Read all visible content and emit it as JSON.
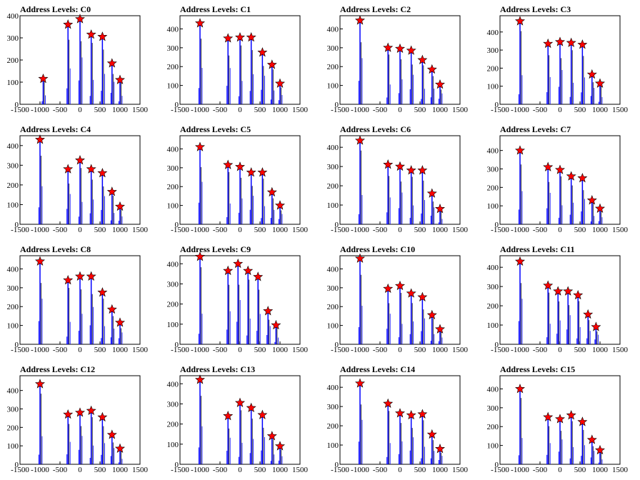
{
  "colors": {
    "bar": "#0000ff",
    "baseline": "#000000",
    "marker": "#ff0000",
    "background": "#ffffff"
  },
  "chart_data": [
    {
      "type": "bar",
      "title": "Address Levels: C0",
      "xlim": [
        -1500,
        1500
      ],
      "ylim": [
        0,
        400
      ],
      "xticks": [
        -1500,
        -1000,
        -500,
        0,
        500,
        1000,
        1500
      ],
      "yticks": [
        0,
        100,
        200,
        300,
        400
      ],
      "peaks": {
        "x": [
          -920,
          -300,
          0,
          280,
          560,
          800,
          1000
        ],
        "y": [
          115,
          360,
          385,
          315,
          305,
          185,
          110
        ]
      }
    },
    {
      "type": "bar",
      "title": "Address Levels: C1",
      "xlim": [
        -1500,
        1500
      ],
      "ylim": [
        0,
        470
      ],
      "xticks": [
        -1500,
        -1000,
        -500,
        0,
        500,
        1000,
        1500
      ],
      "yticks": [
        0,
        100,
        200,
        300,
        400
      ],
      "peaks": {
        "x": [
          -1000,
          -300,
          0,
          280,
          560,
          800,
          1000
        ],
        "y": [
          430,
          350,
          355,
          355,
          275,
          210,
          110
        ]
      }
    },
    {
      "type": "bar",
      "title": "Address Levels: C2",
      "xlim": [
        -1500,
        1500
      ],
      "ylim": [
        0,
        470
      ],
      "xticks": [
        -1500,
        -1000,
        -500,
        0,
        500,
        1000,
        1500
      ],
      "yticks": [
        0,
        100,
        200,
        300,
        400
      ],
      "peaks": {
        "x": [
          -1000,
          -300,
          0,
          280,
          560,
          800,
          1000
        ],
        "y": [
          445,
          300,
          295,
          285,
          235,
          185,
          105
        ]
      }
    },
    {
      "type": "bar",
      "title": "Address Levels: C3",
      "xlim": [
        -1500,
        1500
      ],
      "ylim": [
        0,
        490
      ],
      "xticks": [
        -1500,
        -1000,
        -500,
        0,
        500,
        1000,
        1500
      ],
      "yticks": [
        0,
        100,
        200,
        300,
        400
      ],
      "peaks": {
        "x": [
          -1000,
          -300,
          0,
          280,
          560,
          800,
          1000
        ],
        "y": [
          460,
          335,
          345,
          340,
          330,
          165,
          115
        ]
      }
    },
    {
      "type": "bar",
      "title": "Address Levels: C4",
      "xlim": [
        -1500,
        1500
      ],
      "ylim": [
        0,
        450
      ],
      "xticks": [
        -1500,
        -1000,
        -500,
        0,
        500,
        1000,
        1500
      ],
      "yticks": [
        0,
        100,
        200,
        300,
        400
      ],
      "peaks": {
        "x": [
          -1000,
          -300,
          0,
          280,
          560,
          800,
          1000
        ],
        "y": [
          430,
          280,
          325,
          280,
          260,
          165,
          90
        ]
      }
    },
    {
      "type": "bar",
      "title": "Address Levels: C5",
      "xlim": [
        -1500,
        1500
      ],
      "ylim": [
        0,
        470
      ],
      "xticks": [
        -1500,
        -1000,
        -500,
        0,
        500,
        1000,
        1500
      ],
      "yticks": [
        0,
        100,
        200,
        300,
        400
      ],
      "peaks": {
        "x": [
          -1000,
          -300,
          0,
          280,
          560,
          800,
          1000
        ],
        "y": [
          410,
          315,
          305,
          275,
          275,
          170,
          100
        ]
      }
    },
    {
      "type": "bar",
      "title": "Address Levels: C6",
      "xlim": [
        -1500,
        1500
      ],
      "ylim": [
        0,
        460
      ],
      "xticks": [
        -1500,
        -1000,
        -500,
        0,
        500,
        1000,
        1500
      ],
      "yticks": [
        0,
        100,
        200,
        300,
        400
      ],
      "peaks": {
        "x": [
          -1000,
          -300,
          0,
          280,
          560,
          800,
          1000
        ],
        "y": [
          435,
          310,
          300,
          280,
          280,
          160,
          80
        ]
      }
    },
    {
      "type": "bar",
      "title": "Address Levels: C7",
      "xlim": [
        -1500,
        1500
      ],
      "ylim": [
        0,
        480
      ],
      "xticks": [
        -1500,
        -1000,
        -500,
        0,
        500,
        1000,
        1500
      ],
      "yticks": [
        0,
        100,
        200,
        300,
        400
      ],
      "peaks": {
        "x": [
          -1000,
          -300,
          0,
          280,
          560,
          800,
          1000
        ],
        "y": [
          400,
          310,
          295,
          260,
          250,
          130,
          85
        ]
      }
    },
    {
      "type": "bar",
      "title": "Address Levels: C8",
      "xlim": [
        -1500,
        1500
      ],
      "ylim": [
        0,
        470
      ],
      "xticks": [
        -1500,
        -1000,
        -500,
        0,
        500,
        1000,
        1500
      ],
      "yticks": [
        0,
        100,
        200,
        300,
        400
      ],
      "peaks": {
        "x": [
          -1000,
          -300,
          0,
          280,
          560,
          800,
          1000
        ],
        "y": [
          440,
          340,
          360,
          360,
          275,
          185,
          115
        ]
      }
    },
    {
      "type": "bar",
      "title": "Address Levels: C9",
      "xlim": [
        -1500,
        1500
      ],
      "ylim": [
        0,
        440
      ],
      "xticks": [
        -1500,
        -1000,
        -500,
        0,
        500,
        1000,
        1500
      ],
      "yticks": [
        0,
        100,
        200,
        300,
        400
      ],
      "peaks": {
        "x": [
          -1000,
          -300,
          -50,
          200,
          450,
          700,
          900
        ],
        "y": [
          435,
          365,
          400,
          365,
          335,
          165,
          95
        ]
      }
    },
    {
      "type": "bar",
      "title": "Address Levels: C10",
      "xlim": [
        -1500,
        1500
      ],
      "ylim": [
        0,
        470
      ],
      "xticks": [
        -1500,
        -1000,
        -500,
        0,
        500,
        1000,
        1500
      ],
      "yticks": [
        0,
        100,
        200,
        300,
        400
      ],
      "peaks": {
        "x": [
          -1000,
          -300,
          0,
          280,
          560,
          800,
          1000
        ],
        "y": [
          455,
          295,
          310,
          270,
          250,
          155,
          80
        ]
      }
    },
    {
      "type": "bar",
      "title": "Address Levels: C11",
      "xlim": [
        -1500,
        1500
      ],
      "ylim": [
        0,
        460
      ],
      "xticks": [
        -1500,
        -1000,
        -500,
        0,
        500,
        1000,
        1500
      ],
      "yticks": [
        0,
        100,
        200,
        300,
        400
      ],
      "peaks": {
        "x": [
          -1000,
          -300,
          -50,
          200,
          450,
          700,
          900
        ],
        "y": [
          430,
          305,
          275,
          275,
          255,
          155,
          90
        ]
      }
    },
    {
      "type": "bar",
      "title": "Address Levels: C12",
      "xlim": [
        -1500,
        1500
      ],
      "ylim": [
        0,
        480
      ],
      "xticks": [
        -1500,
        -1000,
        -500,
        0,
        500,
        1000,
        1500
      ],
      "yticks": [
        0,
        100,
        200,
        300,
        400
      ],
      "peaks": {
        "x": [
          -1000,
          -300,
          0,
          280,
          560,
          800,
          1000
        ],
        "y": [
          435,
          270,
          280,
          290,
          255,
          160,
          85
        ]
      }
    },
    {
      "type": "bar",
      "title": "Address Levels: C13",
      "xlim": [
        -1500,
        1500
      ],
      "ylim": [
        0,
        440
      ],
      "xticks": [
        -1500,
        -1000,
        -500,
        0,
        500,
        1000,
        1500
      ],
      "yticks": [
        0,
        100,
        200,
        300,
        400
      ],
      "peaks": {
        "x": [
          -1000,
          -300,
          0,
          280,
          560,
          800,
          1000
        ],
        "y": [
          420,
          240,
          305,
          280,
          245,
          140,
          90
        ]
      }
    },
    {
      "type": "bar",
      "title": "Address Levels: C14",
      "xlim": [
        -1500,
        1500
      ],
      "ylim": [
        0,
        460
      ],
      "xticks": [
        -1500,
        -1000,
        -500,
        0,
        500,
        1000,
        1500
      ],
      "yticks": [
        0,
        100,
        200,
        300,
        400
      ],
      "peaks": {
        "x": [
          -1000,
          -300,
          0,
          280,
          560,
          800,
          1000
        ],
        "y": [
          420,
          315,
          265,
          255,
          260,
          155,
          80
        ]
      }
    },
    {
      "type": "bar",
      "title": "Address Levels: C15",
      "xlim": [
        -1500,
        1500
      ],
      "ylim": [
        0,
        470
      ],
      "xticks": [
        -1500,
        -1000,
        -500,
        0,
        500,
        1000,
        1500
      ],
      "yticks": [
        0,
        100,
        200,
        300,
        400
      ],
      "peaks": {
        "x": [
          -1000,
          -300,
          0,
          280,
          560,
          800,
          1000
        ],
        "y": [
          400,
          250,
          240,
          260,
          225,
          130,
          75
        ]
      }
    }
  ]
}
